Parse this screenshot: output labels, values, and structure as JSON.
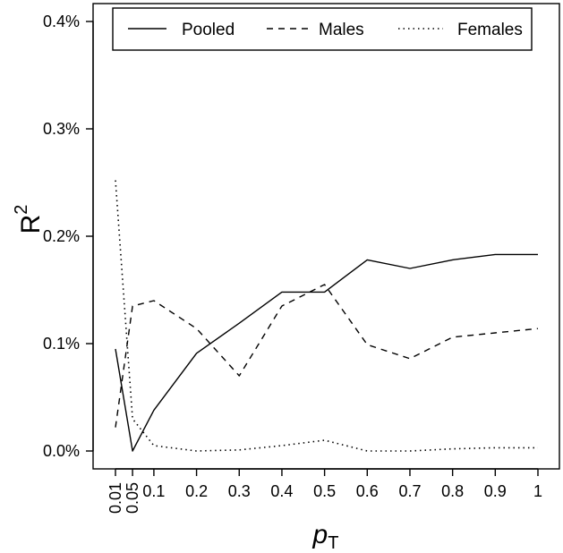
{
  "chart_data": {
    "type": "line",
    "x": [
      0.01,
      0.05,
      0.1,
      0.2,
      0.3,
      0.4,
      0.5,
      0.6,
      0.7,
      0.8,
      0.9,
      1
    ],
    "x_tick_labels": [
      "0.01",
      "0.05",
      "0.1",
      "0.2",
      "0.3",
      "0.4",
      "0.5",
      "0.6",
      "0.7",
      "0.8",
      "0.9",
      "1"
    ],
    "series": [
      {
        "name": "Pooled",
        "style": "solid",
        "values": [
          0.095,
          0.0,
          0.038,
          0.091,
          0.119,
          0.148,
          0.148,
          0.178,
          0.17,
          0.178,
          0.183,
          0.183
        ]
      },
      {
        "name": "Males",
        "style": "dashed",
        "values": [
          0.022,
          0.135,
          0.14,
          0.114,
          0.07,
          0.135,
          0.155,
          0.099,
          0.086,
          0.106,
          0.11,
          0.114
        ]
      },
      {
        "name": "Females",
        "style": "dotted",
        "values": [
          0.252,
          0.03,
          0.005,
          0.0,
          0.001,
          0.005,
          0.01,
          0.0,
          0.0,
          0.002,
          0.003,
          0.003
        ]
      }
    ],
    "y_ticks": [
      0.0,
      0.1,
      0.2,
      0.3,
      0.4
    ],
    "y_tick_labels": [
      "0.0%",
      "0.1%",
      "0.2%",
      "0.3%",
      "0.4%"
    ],
    "ylim": [
      0,
      0.4
    ],
    "xlabel_main": "p",
    "xlabel_sub": "T",
    "ylabel_main": "R",
    "ylabel_sup": "2",
    "grid": false,
    "legend_position": "top",
    "line_color": "#000000"
  }
}
